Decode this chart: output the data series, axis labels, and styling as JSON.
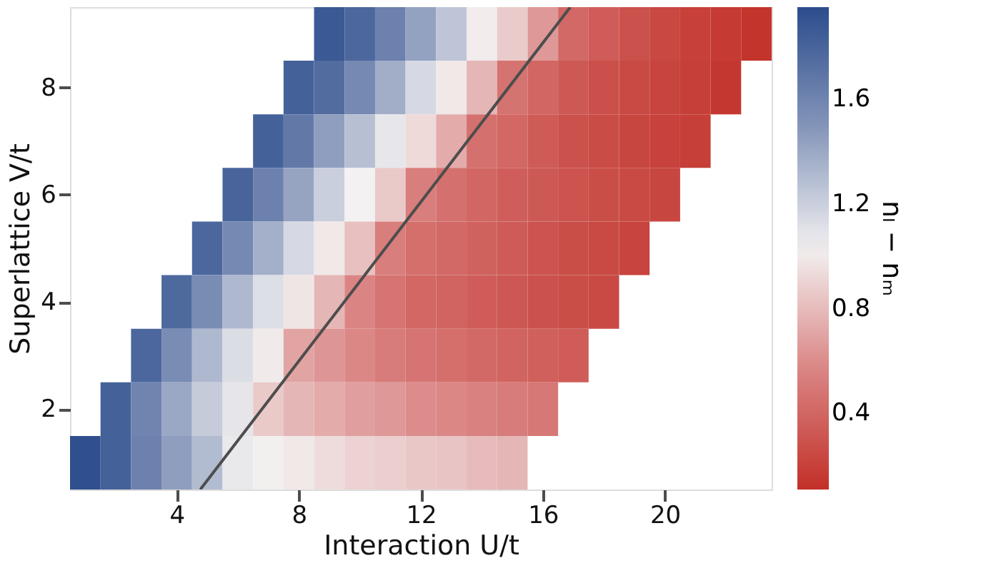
{
  "chart_data": {
    "type": "heatmap",
    "xlabel": "Interaction U/t",
    "ylabel": "Superlattice V/t",
    "clabel": "nₗ − nₘ",
    "x": [
      1,
      2,
      3,
      4,
      5,
      6,
      7,
      8,
      9,
      10,
      11,
      12,
      13,
      14,
      15,
      16,
      17,
      18,
      19,
      20,
      21,
      22,
      23
    ],
    "cells": [
      [
        null,
        null,
        null,
        null,
        null,
        null,
        null,
        null,
        1.87,
        1.78,
        1.62,
        1.43,
        1.25,
        1.01,
        0.87,
        0.65,
        0.42,
        0.35,
        0.29,
        0.24,
        0.2,
        0.17,
        0.13
      ],
      [
        null,
        null,
        null,
        null,
        null,
        null,
        null,
        1.82,
        1.75,
        1.57,
        1.37,
        1.15,
        0.99,
        0.78,
        0.47,
        0.4,
        0.33,
        0.28,
        0.25,
        0.22,
        0.19,
        0.15,
        null
      ],
      [
        null,
        null,
        null,
        null,
        null,
        null,
        1.82,
        1.67,
        1.45,
        1.28,
        1.08,
        0.93,
        0.73,
        0.46,
        0.41,
        0.34,
        0.29,
        0.26,
        0.23,
        0.21,
        0.19,
        null,
        null
      ],
      [
        null,
        null,
        null,
        null,
        null,
        1.8,
        1.62,
        1.42,
        1.2,
        1.03,
        0.86,
        0.53,
        0.46,
        0.4,
        0.36,
        0.33,
        0.3,
        0.27,
        0.25,
        0.23,
        null,
        null,
        null
      ],
      [
        null,
        null,
        null,
        null,
        1.78,
        1.57,
        1.36,
        1.15,
        0.99,
        0.82,
        0.53,
        0.45,
        0.42,
        0.38,
        0.34,
        0.3,
        0.27,
        0.25,
        0.22,
        null,
        null,
        null,
        null
      ],
      [
        null,
        null,
        null,
        1.77,
        1.55,
        1.32,
        1.12,
        0.98,
        0.78,
        0.57,
        0.48,
        0.41,
        0.39,
        0.35,
        0.32,
        0.29,
        0.27,
        0.25,
        null,
        null,
        null,
        null,
        null
      ],
      [
        null,
        null,
        1.78,
        1.55,
        1.32,
        1.13,
        1.0,
        0.7,
        0.64,
        0.58,
        0.52,
        0.48,
        0.45,
        0.42,
        0.39,
        0.37,
        0.35,
        null,
        null,
        null,
        null,
        null,
        null
      ],
      [
        null,
        1.82,
        1.6,
        1.4,
        1.22,
        1.09,
        0.86,
        0.78,
        0.73,
        0.68,
        0.65,
        0.6,
        0.58,
        0.55,
        0.52,
        0.5,
        null,
        null,
        null,
        null,
        null,
        null,
        null
      ],
      [
        1.93,
        1.82,
        1.62,
        1.45,
        1.3,
        1.07,
        1.02,
        0.99,
        0.94,
        0.9,
        0.88,
        0.85,
        0.84,
        0.8,
        0.78,
        null,
        null,
        null,
        null,
        null,
        null,
        null,
        null
      ]
    ],
    "clim": [
      0.11,
      1.95
    ],
    "cticks": [
      0.4,
      0.8,
      1.2,
      1.6
    ],
    "xlim": [
      0.5,
      23.5
    ],
    "xticks": [
      4,
      8,
      12,
      16,
      20
    ],
    "ylim": [
      0.5,
      9.5
    ],
    "yticks": [
      2,
      4,
      6,
      8
    ],
    "series": [
      {
        "type": "line",
        "x": [
          4.77,
          16.9
        ],
        "values": [
          0.5,
          9.5
        ],
        "color": "#4d4d4d"
      }
    ],
    "grid": false
  }
}
